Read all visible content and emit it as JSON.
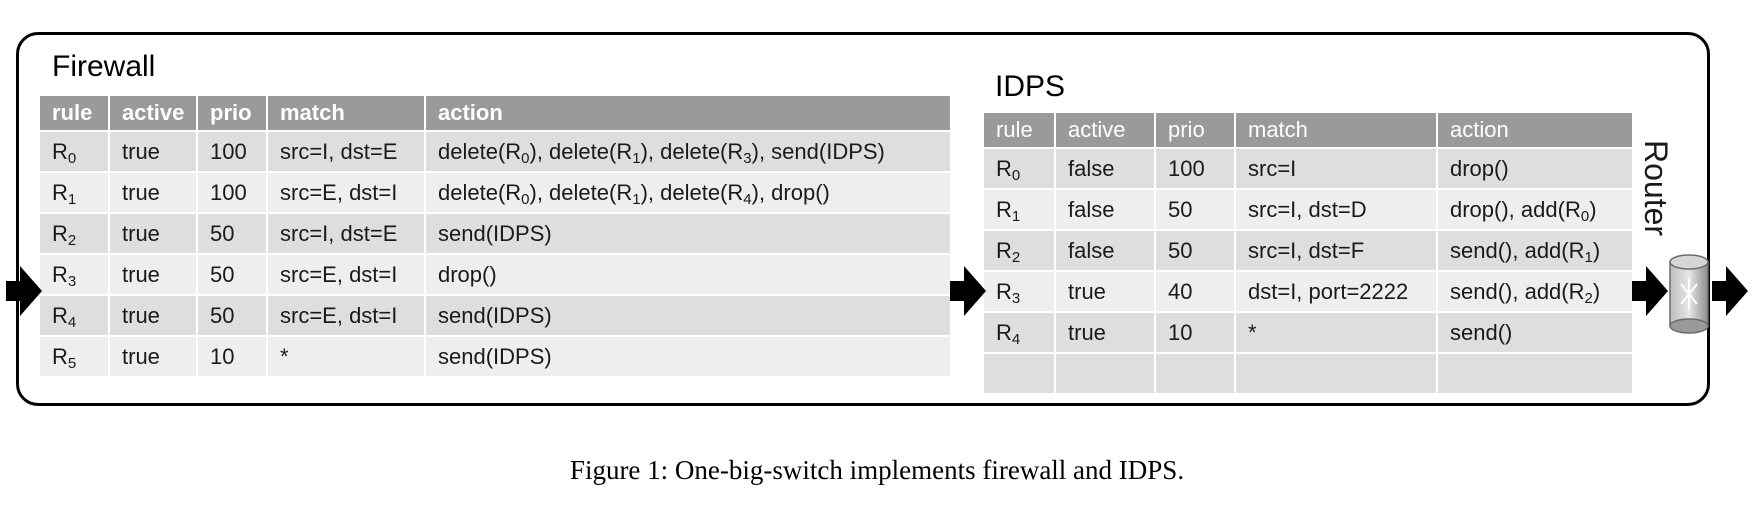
{
  "firewall": {
    "title": "Firewall",
    "headers": [
      "rule",
      "active",
      "prio",
      "match",
      "action"
    ],
    "rows": [
      {
        "rule_base": "R",
        "rule_sub": "0",
        "active": "true",
        "prio": "100",
        "match": "src=I, dst=E",
        "action_html": "delete(R<sub>0</sub>), delete(R<sub>1</sub>), delete(R<sub>3</sub>), send(IDPS)"
      },
      {
        "rule_base": "R",
        "rule_sub": "1",
        "active": "true",
        "prio": "100",
        "match": "src=E, dst=I",
        "action_html": "delete(R<sub>0</sub>), delete(R<sub>1</sub>), delete(R<sub>4</sub>), drop()"
      },
      {
        "rule_base": "R",
        "rule_sub": "2",
        "active": "true",
        "prio": "50",
        "match": "src=I, dst=E",
        "action_html": "send(IDPS)"
      },
      {
        "rule_base": "R",
        "rule_sub": "3",
        "active": "true",
        "prio": "50",
        "match": "src=E, dst=I",
        "action_html": "drop()"
      },
      {
        "rule_base": "R",
        "rule_sub": "4",
        "active": "true",
        "prio": "50",
        "match": "src=E, dst=I",
        "action_html": "send(IDPS)"
      },
      {
        "rule_base": "R",
        "rule_sub": "5",
        "active": "true",
        "prio": "10",
        "match": "*",
        "action_html": "send(IDPS)"
      }
    ]
  },
  "idps": {
    "title": "IDPS",
    "headers": [
      "rule",
      "active",
      "prio",
      "match",
      "action"
    ],
    "rows": [
      {
        "rule_base": "R",
        "rule_sub": "0",
        "active": "false",
        "prio": "100",
        "match": "src=I",
        "action_html": "drop()"
      },
      {
        "rule_base": "R",
        "rule_sub": "1",
        "active": "false",
        "prio": "50",
        "match": "src=I, dst=D",
        "action_html": "drop(), add(R<sub>0</sub>)"
      },
      {
        "rule_base": "R",
        "rule_sub": "2",
        "active": "false",
        "prio": "50",
        "match": "src=I, dst=F",
        "action_html": "send(), add(R<sub>1</sub>)"
      },
      {
        "rule_base": "R",
        "rule_sub": "3",
        "active": "true",
        "prio": "40",
        "match": "dst=I, port=2222",
        "action_html": "send(), add(R<sub>2</sub>)"
      },
      {
        "rule_base": "R",
        "rule_sub": "4",
        "active": "true",
        "prio": "10",
        "match": "*",
        "action_html": "send()"
      }
    ]
  },
  "router": {
    "label": "Router",
    "icon": "router-icon"
  },
  "caption": "Figure 1: One-big-switch implements firewall and IDPS.",
  "colors": {
    "header_bg": "#9a9a9a",
    "row_dark": "#dedede",
    "row_light": "#eeeeee"
  }
}
